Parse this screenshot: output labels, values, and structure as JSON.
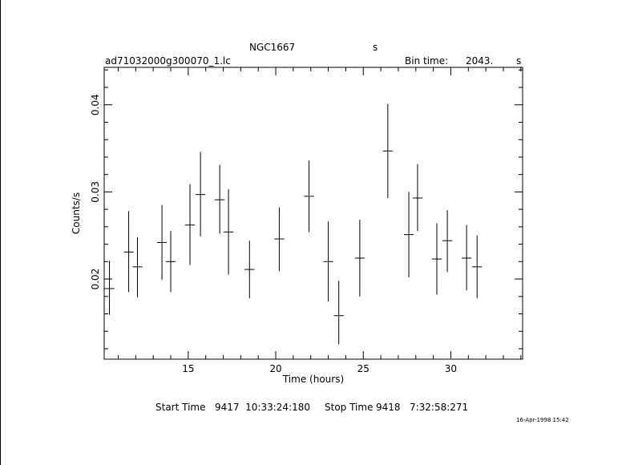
{
  "header": {
    "object_name": "NGC1667",
    "object_unit": "s",
    "file_name": "ad71032000g300070_1.lc",
    "bin_time_label": "Bin time:",
    "bin_time_value": "2043.",
    "bin_time_unit": "s"
  },
  "footer": {
    "start_label": "Start Time",
    "start_value": "9417  10:33:24:180",
    "stop_label": "Stop Time",
    "stop_value": "9418   7:32:58:271",
    "timestamp": "16-Apr-1998 15:42"
  },
  "chart_data": {
    "type": "scatter",
    "title": "NGC1667",
    "xlabel": "Time (hours)",
    "ylabel": "Counts/s",
    "xlim": [
      10.2,
      34.1
    ],
    "ylim": [
      0.0108,
      0.0443
    ],
    "x_ticks": [
      15,
      20,
      25,
      30
    ],
    "y_ticks": [
      0.02,
      0.03,
      0.04
    ],
    "x_tick_labels": [
      "15",
      "20",
      "25",
      "30"
    ],
    "y_tick_labels": [
      "0.02",
      "0.03",
      "0.04"
    ],
    "grid": false,
    "error_bars": true,
    "points": [
      {
        "x": 10.5,
        "y": 0.0189,
        "xerr": 0.28,
        "ylo": 0.0159,
        "yhi": 0.0221
      },
      {
        "x": 11.6,
        "y": 0.0231,
        "xerr": 0.28,
        "ylo": 0.0185,
        "yhi": 0.0278
      },
      {
        "x": 12.1,
        "y": 0.0214,
        "xerr": 0.28,
        "ylo": 0.0179,
        "yhi": 0.0248
      },
      {
        "x": 13.5,
        "y": 0.0242,
        "xerr": 0.28,
        "ylo": 0.0199,
        "yhi": 0.0285
      },
      {
        "x": 14.0,
        "y": 0.022,
        "xerr": 0.28,
        "ylo": 0.0185,
        "yhi": 0.0255
      },
      {
        "x": 15.1,
        "y": 0.0262,
        "xerr": 0.28,
        "ylo": 0.0216,
        "yhi": 0.0309
      },
      {
        "x": 15.7,
        "y": 0.0297,
        "xerr": 0.28,
        "ylo": 0.0249,
        "yhi": 0.0346
      },
      {
        "x": 16.8,
        "y": 0.0291,
        "xerr": 0.28,
        "ylo": 0.0252,
        "yhi": 0.0331
      },
      {
        "x": 17.3,
        "y": 0.0254,
        "xerr": 0.28,
        "ylo": 0.0205,
        "yhi": 0.0303
      },
      {
        "x": 18.5,
        "y": 0.0211,
        "xerr": 0.28,
        "ylo": 0.0178,
        "yhi": 0.0244
      },
      {
        "x": 20.2,
        "y": 0.0246,
        "xerr": 0.28,
        "ylo": 0.0209,
        "yhi": 0.0282
      },
      {
        "x": 21.9,
        "y": 0.0295,
        "xerr": 0.28,
        "ylo": 0.0254,
        "yhi": 0.0336
      },
      {
        "x": 23.0,
        "y": 0.022,
        "xerr": 0.28,
        "ylo": 0.0174,
        "yhi": 0.0266
      },
      {
        "x": 23.6,
        "y": 0.0158,
        "xerr": 0.28,
        "ylo": 0.0125,
        "yhi": 0.0198
      },
      {
        "x": 24.8,
        "y": 0.0224,
        "xerr": 0.28,
        "ylo": 0.018,
        "yhi": 0.0268
      },
      {
        "x": 26.4,
        "y": 0.0347,
        "xerr": 0.28,
        "ylo": 0.0293,
        "yhi": 0.0401
      },
      {
        "x": 27.6,
        "y": 0.0251,
        "xerr": 0.28,
        "ylo": 0.0202,
        "yhi": 0.03
      },
      {
        "x": 28.1,
        "y": 0.0293,
        "xerr": 0.28,
        "ylo": 0.0255,
        "yhi": 0.0332
      },
      {
        "x": 29.2,
        "y": 0.0223,
        "xerr": 0.28,
        "ylo": 0.0182,
        "yhi": 0.0264
      },
      {
        "x": 29.8,
        "y": 0.0244,
        "xerr": 0.28,
        "ylo": 0.0208,
        "yhi": 0.0279
      },
      {
        "x": 30.9,
        "y": 0.0224,
        "xerr": 0.28,
        "ylo": 0.0187,
        "yhi": 0.0262
      },
      {
        "x": 31.5,
        "y": 0.0214,
        "xerr": 0.28,
        "ylo": 0.0178,
        "yhi": 0.025
      }
    ]
  }
}
